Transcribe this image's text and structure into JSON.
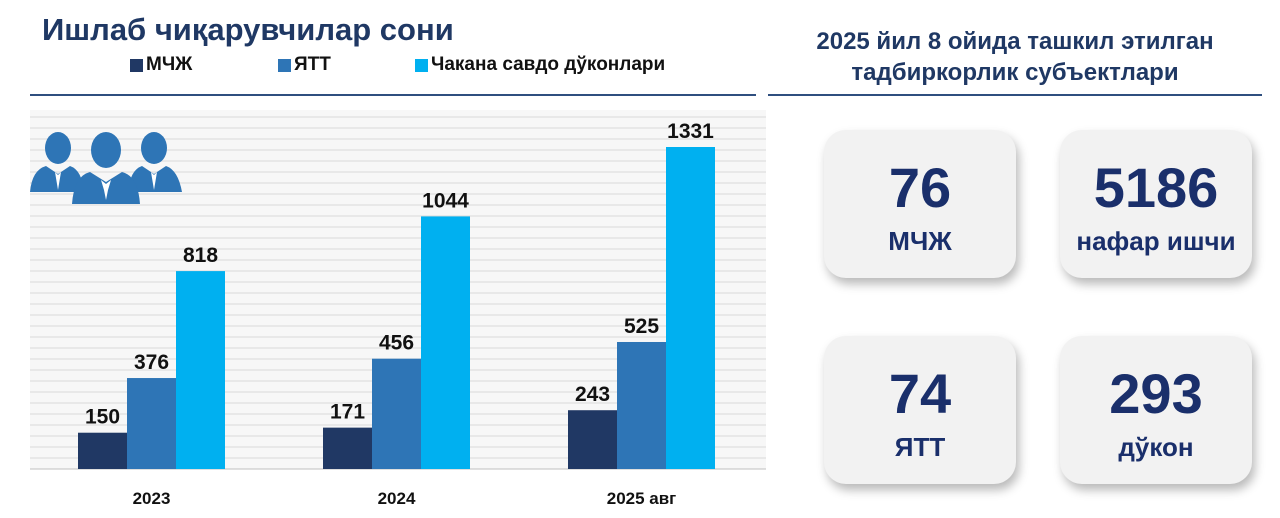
{
  "left_panel": {
    "title": "Ишлаб чиқарувчилар сони",
    "icon": "people-group-icon"
  },
  "right_panel": {
    "title_line1": "2025 йил 8 ойида ташкил этилган",
    "title_line2": "тадбиркорлик субъектлари",
    "cards": [
      {
        "value": "76",
        "label": "МЧЖ"
      },
      {
        "value": "5186",
        "label": "нафар ишчи"
      },
      {
        "value": "74",
        "label": "ЯТТ"
      },
      {
        "value": "293",
        "label": "дўкон"
      }
    ]
  },
  "colors": {
    "title": "#1f3864",
    "card_text": "#1a2f6b",
    "icon": "#2e75b6"
  },
  "chart_data": {
    "type": "bar",
    "categories": [
      "2023",
      "2024",
      "2025 авг"
    ],
    "series": [
      {
        "name": "МЧЖ",
        "values": [
          150,
          171,
          243
        ],
        "color": "#203864"
      },
      {
        "name": "ЯТТ",
        "values": [
          376,
          456,
          525
        ],
        "color": "#2e75b6"
      },
      {
        "name": "Чакана савдо дўконлари",
        "values": [
          818,
          1044,
          1331
        ],
        "color": "#00b0f0"
      }
    ],
    "ylim": [
      0,
      1331
    ],
    "grid": true,
    "legend_position": "top",
    "data_labels": true
  }
}
